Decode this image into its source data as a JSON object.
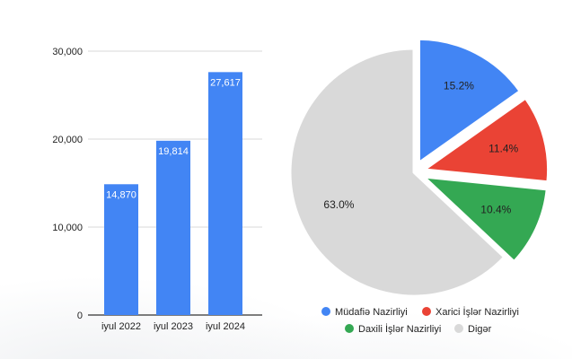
{
  "colors": {
    "bar": "#4285F4",
    "gridline": "#d9d9d9",
    "axis": "#333333"
  },
  "chart_data": [
    {
      "type": "bar",
      "title": "",
      "xlabel": "",
      "ylabel": "",
      "categories": [
        "iyul 2022",
        "iyul 2023",
        "iyul 2024"
      ],
      "values": [
        14870,
        19814,
        27617
      ],
      "value_labels": [
        "14,870",
        "19,814",
        "27,617"
      ],
      "ylim": [
        0,
        30000
      ],
      "yticks": [
        0,
        10000,
        20000,
        30000
      ],
      "ytick_labels": [
        "0",
        "10,000",
        "20,000",
        "30,000"
      ],
      "grid": true,
      "color": "#4285F4"
    },
    {
      "type": "pie",
      "title": "",
      "slices": [
        {
          "label": "Müdafiə Nazirliyi",
          "value": 15.2,
          "value_label": "15.2%",
          "color": "#4285F4"
        },
        {
          "label": "Xarici İşlər Nazirliyi",
          "value": 11.4,
          "value_label": "11.4%",
          "color": "#EA4335"
        },
        {
          "label": "Daxili İşlər Nazirliyi",
          "value": 10.4,
          "value_label": "10.4%",
          "color": "#34A853"
        },
        {
          "label": "Digər",
          "value": 63.0,
          "value_label": "63.0%",
          "color": "#D9D9D9"
        }
      ],
      "exploded": [
        "Müdafiə Nazirliyi",
        "Xarici İşlər Nazirliyi",
        "Daxili İşlər Nazirliyi"
      ],
      "legend_position": "bottom"
    }
  ]
}
